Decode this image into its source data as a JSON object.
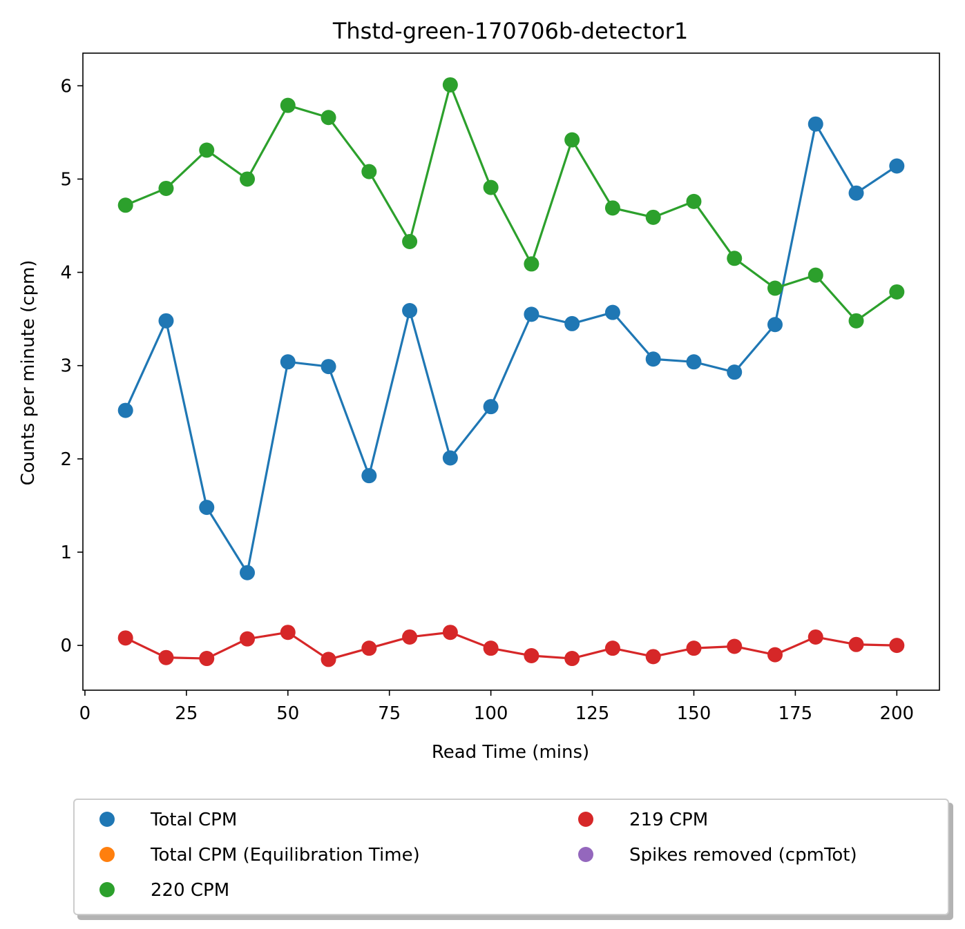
{
  "chart_data": {
    "type": "line",
    "title": "Thstd-green-170706b-detector1",
    "xlabel": "Read Time (mins)",
    "ylabel": "Counts per minute (cpm)",
    "xlim": [
      -0.5,
      210.5
    ],
    "ylim": [
      -0.48,
      6.35
    ],
    "xticks": [
      0,
      25,
      50,
      75,
      100,
      125,
      150,
      175,
      200
    ],
    "yticks": [
      0,
      1,
      2,
      3,
      4,
      5,
      6
    ],
    "x": [
      10,
      20,
      30,
      40,
      50,
      60,
      70,
      80,
      90,
      100,
      110,
      120,
      130,
      140,
      150,
      160,
      170,
      180,
      190,
      200
    ],
    "series": [
      {
        "name": "Total CPM",
        "color": "#1f77b4",
        "values": [
          2.52,
          3.48,
          1.48,
          0.78,
          3.04,
          2.99,
          1.82,
          3.59,
          2.01,
          2.56,
          3.55,
          3.45,
          3.57,
          3.07,
          3.04,
          2.93,
          3.44,
          5.59,
          4.85,
          5.14
        ]
      },
      {
        "name": "220 CPM",
        "color": "#2ca02c",
        "values": [
          4.72,
          4.9,
          5.31,
          5.0,
          5.79,
          5.66,
          5.08,
          4.33,
          6.01,
          4.91,
          4.09,
          5.42,
          4.69,
          4.59,
          4.76,
          4.15,
          3.83,
          3.97,
          3.48,
          3.79
        ]
      },
      {
        "name": "219 CPM",
        "color": "#d62728",
        "values": [
          0.08,
          -0.13,
          -0.14,
          0.07,
          0.14,
          -0.15,
          -0.03,
          0.09,
          0.14,
          -0.03,
          -0.11,
          -0.14,
          -0.03,
          -0.12,
          -0.03,
          -0.01,
          -0.1,
          0.09,
          0.01,
          0.0
        ]
      }
    ],
    "legend": {
      "placement": "below",
      "entries": [
        {
          "name": "Total CPM",
          "color": "#1f77b4"
        },
        {
          "name": "Total CPM (Equilibration Time)",
          "color": "#ff7f0e"
        },
        {
          "name": "220 CPM",
          "color": "#2ca02c"
        },
        {
          "name": "219 CPM",
          "color": "#d62728"
        },
        {
          "name": "Spikes removed (cpmTot)",
          "color": "#9467bd"
        }
      ]
    },
    "grid": false
  }
}
